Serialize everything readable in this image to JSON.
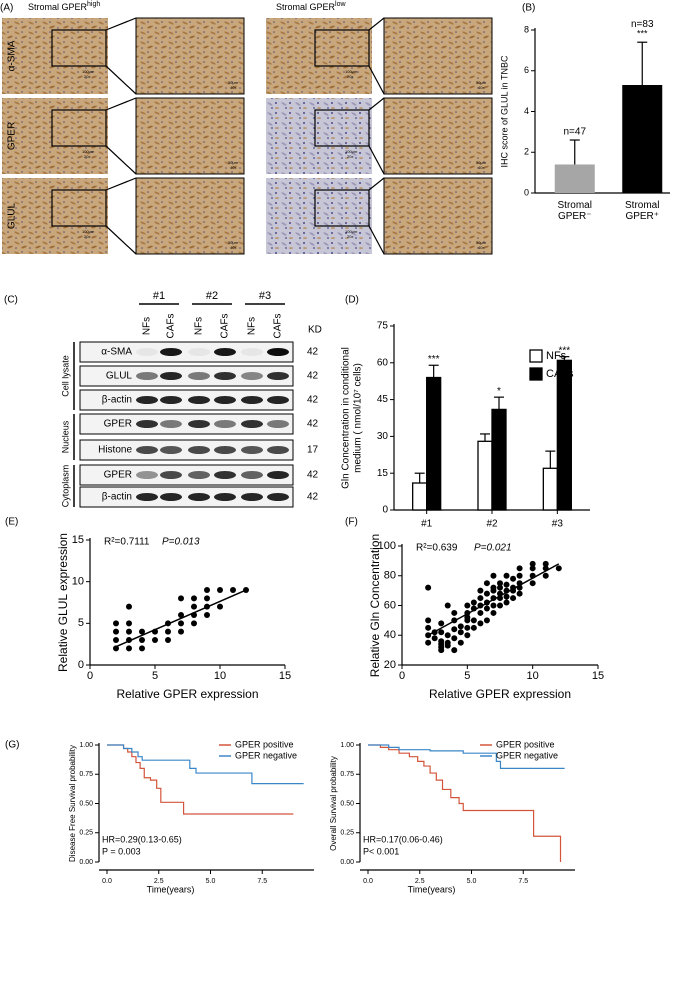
{
  "ihc": {
    "label": "(A)",
    "groups": [
      {
        "title": "Stromal GPER",
        "sup": "high"
      },
      {
        "title": "Stromal GPER",
        "sup": "low"
      }
    ],
    "rows": [
      "α-SMA",
      "GPER",
      "GLUL"
    ],
    "scale_low": [
      "100μm",
      "20x"
    ],
    "scale_high": [
      "50μm",
      "40x"
    ]
  },
  "blot": {
    "label": "(C)",
    "groups": [
      "#1",
      "#2",
      "#3"
    ],
    "lanes": [
      "NFs",
      "CAFs",
      "NFs",
      "CAFs",
      "NFs",
      "CAFs"
    ],
    "kd_header": "KD",
    "rows": [
      {
        "name": "α-SMA",
        "kd": 42
      },
      {
        "name": "GLUL",
        "kd": 42
      },
      {
        "name": "β-actin",
        "kd": 42
      },
      {
        "name": "GPER",
        "kd": 42
      },
      {
        "name": "Histone",
        "kd": 17
      },
      {
        "name": "GPER",
        "kd": 42
      },
      {
        "name": "β-actin",
        "kd": 42
      }
    ],
    "fractions": [
      "Cell lysate",
      "Nucleus",
      "Cytoplasm"
    ]
  },
  "chart_data": [
    {
      "type": "bar",
      "label": "(B)",
      "ylabel": "IHC score of GLUL in TNBC",
      "categories": [
        "Stromal GPER⁻",
        "Stromal GPER⁺"
      ],
      "values": [
        1.4,
        5.3
      ],
      "errors": [
        1.2,
        2.1
      ],
      "colors": [
        "#a6a6a6",
        "#000000"
      ],
      "counts": [
        "n=47",
        "n=83"
      ],
      "stars": [
        null,
        "***"
      ],
      "ylim": [
        0,
        8
      ],
      "yticks": [
        0,
        2,
        4,
        6,
        8
      ]
    },
    {
      "type": "bar",
      "label": "(D)",
      "ylabel": [
        "Gln Concentration in conditional",
        "medium ( nmol/10⁷ cells)"
      ],
      "categories": [
        "#1",
        "#2",
        "#3"
      ],
      "series": [
        {
          "name": "NFs",
          "color": "#ffffff",
          "values": [
            11,
            28,
            17
          ],
          "errors": [
            4,
            3,
            7
          ]
        },
        {
          "name": "CAFs",
          "color": "#000000",
          "values": [
            54,
            41,
            61
          ],
          "errors": [
            5,
            5,
            1.5
          ]
        }
      ],
      "stars": [
        "***",
        "*",
        "***"
      ],
      "legend": "upper right",
      "ylim": [
        0,
        75
      ],
      "yticks": [
        0,
        15,
        30,
        45,
        60,
        75
      ]
    },
    {
      "type": "scatter",
      "label": "(E)",
      "xlabel": "Relative GPER expression",
      "ylabel": "Relative GLUL expression",
      "r2": "R²=0.7111",
      "p": "P=0.013",
      "x": [
        2,
        2,
        2,
        2,
        3,
        3,
        3,
        3,
        3,
        4,
        4,
        4,
        5,
        5,
        6,
        6,
        6,
        7,
        7,
        7,
        7,
        8,
        8,
        8,
        8,
        9,
        9,
        9,
        9,
        10,
        10,
        11,
        12
      ],
      "values": [
        2,
        3,
        4,
        5,
        2,
        3,
        4,
        5,
        7,
        2,
        3,
        4,
        3,
        4,
        3,
        4,
        5,
        4,
        5,
        6,
        8,
        5,
        6,
        7,
        8,
        6,
        7,
        8,
        9,
        7,
        9,
        9,
        9
      ],
      "trend": {
        "x": [
          2,
          12
        ],
        "values": [
          2.2,
          9
        ]
      },
      "xlim": [
        0,
        15
      ],
      "xticks": [
        0,
        5,
        10,
        15
      ],
      "ylim": [
        0,
        15
      ],
      "yticks": [
        0,
        5,
        10,
        15
      ]
    },
    {
      "type": "scatter",
      "label": "(F)",
      "xlabel": "Relative GPER expression",
      "ylabel": "Relative Gln Concentration",
      "r2": "R²=0.639",
      "p": "P=0.021",
      "x": [
        2,
        2,
        2,
        2,
        2,
        2.5,
        2.5,
        3,
        3,
        3,
        3,
        3,
        3,
        3.5,
        3.5,
        3.5,
        3.5,
        4,
        4,
        4,
        4,
        4,
        4.5,
        4.5,
        4.5,
        5,
        5,
        5,
        5,
        5,
        5,
        5.5,
        5.5,
        5.5,
        5.5,
        6,
        6,
        6,
        6,
        6,
        6.5,
        6.5,
        6.5,
        6.5,
        6.5,
        7,
        7,
        7,
        7,
        7,
        7,
        7.5,
        7.5,
        7.5,
        7.5,
        7.5,
        8,
        8,
        8,
        8,
        8,
        8.5,
        8.5,
        8.5,
        8.5,
        9,
        9,
        9,
        9,
        9,
        10,
        10,
        10,
        10,
        11,
        11,
        11,
        12
      ],
      "values": [
        35,
        40,
        45,
        50,
        72,
        38,
        42,
        30,
        32,
        34,
        36,
        42,
        48,
        33,
        35,
        40,
        60,
        30,
        38,
        44,
        50,
        55,
        35,
        42,
        46,
        40,
        45,
        50,
        52,
        55,
        60,
        45,
        50,
        58,
        62,
        48,
        55,
        60,
        65,
        70,
        50,
        58,
        62,
        68,
        75,
        55,
        60,
        65,
        70,
        72,
        80,
        60,
        65,
        68,
        72,
        75,
        62,
        66,
        70,
        74,
        80,
        65,
        70,
        72,
        78,
        68,
        72,
        75,
        80,
        85,
        75,
        80,
        85,
        88,
        80,
        85,
        88,
        85
      ],
      "trend": {
        "x": [
          2,
          12
        ],
        "values": [
          40,
          88
        ]
      },
      "xlim": [
        0,
        15
      ],
      "xticks": [
        0,
        5,
        10,
        15
      ],
      "ylim": [
        20,
        100
      ],
      "yticks": [
        20,
        40,
        60,
        80,
        100
      ]
    },
    {
      "type": "survival",
      "label": "(G)",
      "xlabel": "Time(years)",
      "ylabel": "Disease Free Survival probability",
      "hr": "HR=0.29(0.13-0.65)",
      "p": "P = 0.003",
      "legend": "upper right",
      "series": [
        {
          "name": "GPER positive",
          "color": "#d2553b",
          "x": [
            0,
            0.8,
            1.0,
            1.2,
            1.4,
            1.6,
            1.8,
            2.1,
            2.4,
            2.6,
            3.5,
            3.7,
            9
          ],
          "values": [
            1,
            0.97,
            0.94,
            0.9,
            0.85,
            0.8,
            0.72,
            0.7,
            0.63,
            0.51,
            0.51,
            0.41,
            0.41
          ]
        },
        {
          "name": "GPER negative",
          "color": "#3a87c8",
          "x": [
            0,
            0.8,
            1.2,
            1.5,
            1.7,
            3.8,
            4.0,
            4.3,
            6.8,
            7.0,
            9.5
          ],
          "values": [
            1,
            0.97,
            0.94,
            0.9,
            0.87,
            0.87,
            0.8,
            0.76,
            0.76,
            0.67,
            0.67
          ]
        }
      ],
      "xlim": [
        0,
        10
      ],
      "xticks": [
        {
          "value": 0,
          "label": "0.0"
        },
        2.5,
        {
          "value": 5,
          "label": "5.0"
        },
        7.5
      ],
      "ylim": [
        0,
        1
      ],
      "yticks": [
        {
          "value": 0,
          "label": "0.00"
        },
        0.25,
        {
          "value": 0.5,
          "label": "0.50"
        },
        0.75,
        {
          "value": 1,
          "label": "1.00"
        }
      ]
    },
    {
      "type": "survival",
      "xlabel": "Time(years)",
      "ylabel": "Overall Survival probability",
      "hr": "HR=0.17(0.06-0.46)",
      "p": "P< 0.001",
      "legend": "upper right",
      "series": [
        {
          "name": "GPER positive",
          "color": "#d2553b",
          "x": [
            0,
            0.6,
            1,
            1.5,
            2,
            2.4,
            2.7,
            3,
            3.3,
            3.6,
            4,
            4.4,
            4.6,
            7.8,
            8,
            9,
            9.3
          ],
          "values": [
            1,
            0.98,
            0.96,
            0.93,
            0.9,
            0.86,
            0.82,
            0.76,
            0.7,
            0.62,
            0.55,
            0.5,
            0.44,
            0.44,
            0.22,
            0.22,
            0
          ]
        },
        {
          "name": "GPER negative",
          "color": "#3a87c8",
          "x": [
            0,
            1,
            1.5,
            3,
            4.6,
            6,
            6.2,
            6.4,
            9.5
          ],
          "values": [
            1,
            0.98,
            0.96,
            0.95,
            0.93,
            0.93,
            0.86,
            0.8,
            0.8
          ]
        }
      ],
      "xlim": [
        0,
        10
      ],
      "xticks": [
        {
          "value": 0,
          "label": "0.0"
        },
        2.5,
        {
          "value": 5,
          "label": "5.0"
        },
        7.5
      ],
      "ylim": [
        0,
        1
      ],
      "yticks": [
        {
          "value": 0,
          "label": "0.00"
        },
        0.25,
        {
          "value": 0.5,
          "label": "0.50"
        },
        0.75,
        {
          "value": 1,
          "label": "1.00"
        }
      ]
    }
  ]
}
